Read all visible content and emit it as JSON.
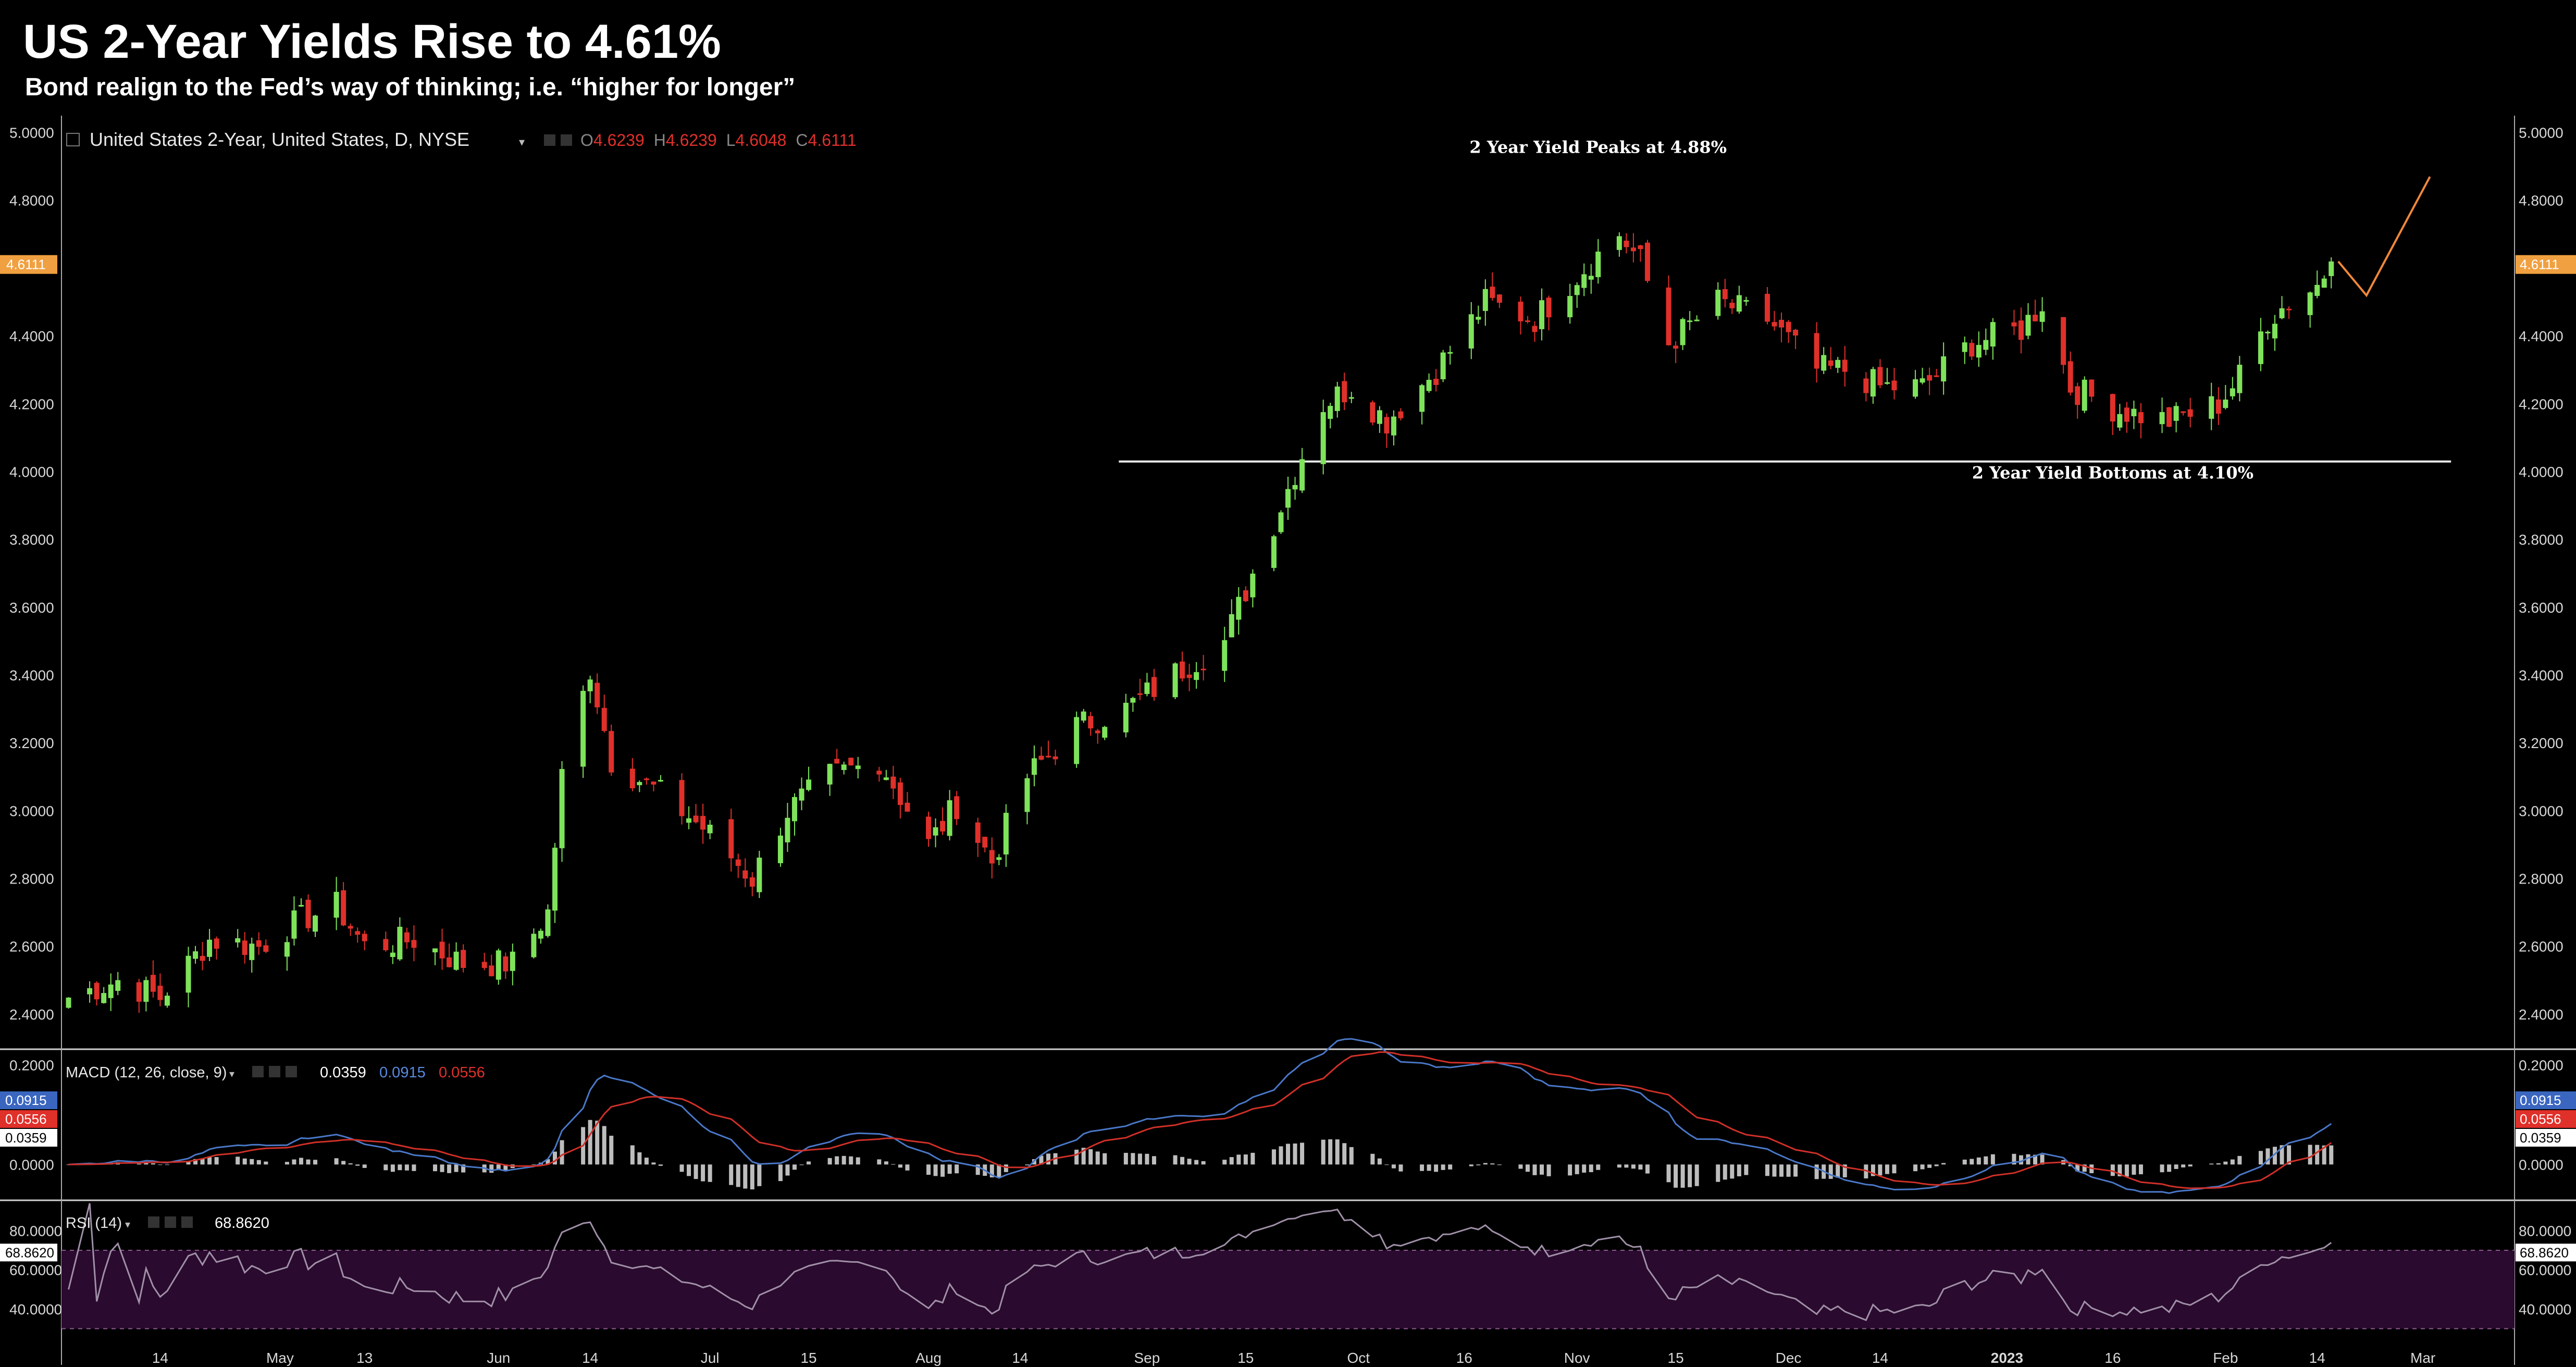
{
  "header": {
    "title": "US 2-Year Yields Rise to 4.61%",
    "subtitle": "Bond realign to the Fed’s way of thinking; i.e. “higher for longer”"
  },
  "colors": {
    "up": "#7ee35a",
    "down": "#e0302a",
    "projection": "#f0883a",
    "macd": "#4a78c8",
    "signal": "#d03028",
    "rsi": "#a090a8",
    "rsi_band": "#2a0a2e"
  },
  "chart_data": [
    {
      "type": "candlestick",
      "symbol_label": "United States 2-Year, United States, D, NYSE",
      "ohlc": {
        "o_label": "O",
        "o": "4.6239",
        "h_label": "H",
        "h": "4.6239",
        "l_label": "L",
        "l": "4.6048",
        "c_label": "C",
        "c": "4.6111"
      },
      "last_price_tag": "4.6111",
      "ylim": [
        2.3,
        5.05
      ],
      "y_ticks": [
        "5.0000",
        "4.8000",
        "4.6000",
        "4.4000",
        "4.2000",
        "4.0000",
        "3.8000",
        "3.6000",
        "3.4000",
        "3.2000",
        "3.0000",
        "2.8000",
        "2.6000",
        "2.4000"
      ],
      "x_ticks": [
        "14",
        "May",
        "13",
        "Jun",
        "14",
        "Jul",
        "15",
        "Aug",
        "14",
        "Sep",
        "15",
        "Oct",
        "16",
        "Nov",
        "15",
        "Dec",
        "14",
        "2023",
        "16",
        "Feb",
        "14",
        "Mar"
      ],
      "x_tick_dates": [
        "2022-04-14",
        "2022-05-01",
        "2022-05-13",
        "2022-06-01",
        "2022-06-14",
        "2022-07-01",
        "2022-07-15",
        "2022-08-01",
        "2022-08-14",
        "2022-09-01",
        "2022-09-15",
        "2022-10-01",
        "2022-10-16",
        "2022-11-01",
        "2022-11-15",
        "2022-12-01",
        "2022-12-14",
        "2023-01-01",
        "2023-01-16",
        "2023-02-01",
        "2023-02-14",
        "2023-03-01"
      ],
      "x_start": "2022-03-31",
      "x_end": "2023-03-14",
      "close_anchors": [
        [
          "2022-04-01",
          2.45
        ],
        [
          "2022-04-08",
          2.5
        ],
        [
          "2022-04-14",
          2.45
        ],
        [
          "2022-04-21",
          2.62
        ],
        [
          "2022-04-28",
          2.6
        ],
        [
          "2022-05-04",
          2.68
        ],
        [
          "2022-05-09",
          2.72
        ],
        [
          "2022-05-13",
          2.6
        ],
        [
          "2022-05-20",
          2.62
        ],
        [
          "2022-05-27",
          2.55
        ],
        [
          "2022-06-03",
          2.55
        ],
        [
          "2022-06-08",
          2.7
        ],
        [
          "2022-06-10",
          3.1
        ],
        [
          "2022-06-14",
          3.42
        ],
        [
          "2022-06-17",
          3.15
        ],
        [
          "2022-06-24",
          3.05
        ],
        [
          "2022-06-30",
          2.95
        ],
        [
          "2022-07-07",
          2.8
        ],
        [
          "2022-07-12",
          3.0
        ],
        [
          "2022-07-18",
          3.1
        ],
        [
          "2022-07-25",
          3.15
        ],
        [
          "2022-08-01",
          2.9
        ],
        [
          "2022-08-05",
          3.02
        ],
        [
          "2022-08-10",
          2.85
        ],
        [
          "2022-08-15",
          3.1
        ],
        [
          "2022-08-22",
          3.25
        ],
        [
          "2022-08-29",
          3.3
        ],
        [
          "2022-09-06",
          3.42
        ],
        [
          "2022-09-12",
          3.5
        ],
        [
          "2022-09-19",
          3.85
        ],
        [
          "2022-09-26",
          4.2
        ],
        [
          "2022-09-30",
          4.25
        ],
        [
          "2022-10-05",
          4.15
        ],
        [
          "2022-10-12",
          4.3
        ],
        [
          "2022-10-19",
          4.5
        ],
        [
          "2022-10-26",
          4.45
        ],
        [
          "2022-11-02",
          4.6
        ],
        [
          "2022-11-07",
          4.7
        ],
        [
          "2022-11-10",
          4.62
        ],
        [
          "2022-11-14",
          4.38
        ],
        [
          "2022-11-21",
          4.5
        ],
        [
          "2022-11-28",
          4.45
        ],
        [
          "2022-12-05",
          4.3
        ],
        [
          "2022-12-09",
          4.3
        ],
        [
          "2022-12-14",
          4.25
        ],
        [
          "2022-12-20",
          4.25
        ],
        [
          "2022-12-27",
          4.38
        ],
        [
          "2023-01-03",
          4.42
        ],
        [
          "2023-01-06",
          4.5
        ],
        [
          "2023-01-10",
          4.25
        ],
        [
          "2023-01-17",
          4.18
        ],
        [
          "2023-01-24",
          4.15
        ],
        [
          "2023-01-31",
          4.2
        ],
        [
          "2023-02-03",
          4.28
        ],
        [
          "2023-02-07",
          4.45
        ],
        [
          "2023-02-10",
          4.5
        ],
        [
          "2023-02-14",
          4.55
        ],
        [
          "2023-02-16",
          4.62
        ]
      ],
      "projection": [
        [
          "2023-02-17",
          4.62
        ],
        [
          "2023-02-21",
          4.52
        ],
        [
          "2023-03-02",
          4.87
        ]
      ],
      "annotations": [
        {
          "text": "2 Year Yield Peaks at 4.88%",
          "date": "2022-11-04",
          "value": 4.94
        },
        {
          "text": "2 Year Yield Bottoms at 4.10%",
          "date": "2023-01-16",
          "value": 3.98
        }
      ],
      "support_line": {
        "value": 4.03,
        "from": "2022-08-28",
        "to": "2023-03-05"
      }
    },
    {
      "type": "macd",
      "label": "MACD (12, 26, close, 9)",
      "values": [
        "0.0359",
        "0.0915",
        "0.0556"
      ],
      "tags": [
        "0.0915",
        "0.0556",
        "0.0359"
      ],
      "y_ticks": [
        "0.2000",
        "0.0000"
      ],
      "ylim": [
        -0.07,
        0.23
      ]
    },
    {
      "type": "rsi",
      "label": "RSI (14)",
      "value": "68.8620",
      "tag": "68.8620",
      "y_ticks": [
        "80.0000",
        "60.0000",
        "40.0000"
      ],
      "band": [
        30,
        70
      ],
      "ylim": [
        20,
        95
      ]
    }
  ]
}
